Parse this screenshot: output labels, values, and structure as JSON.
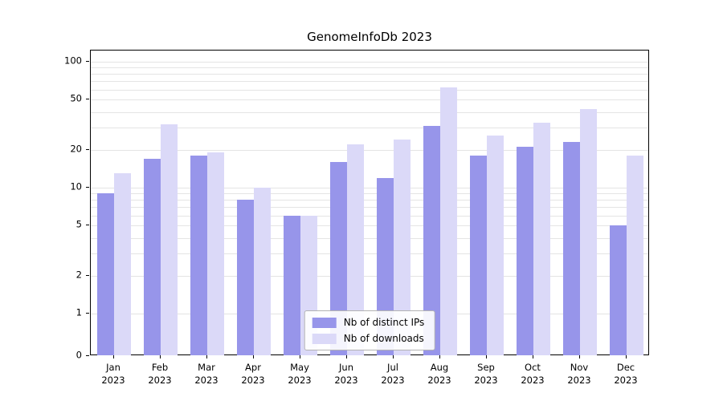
{
  "title": "GenomeInfoDb 2023",
  "chart_data": {
    "type": "bar",
    "yscale": "log",
    "title": "GenomeInfoDb 2023",
    "xlabel": "",
    "ylabel": "",
    "categories": [
      "Jan 2023",
      "Feb 2023",
      "Mar 2023",
      "Apr 2023",
      "May 2023",
      "Jun 2023",
      "Jul 2023",
      "Aug 2023",
      "Sep 2023",
      "Oct 2023",
      "Nov 2023",
      "Dec 2023"
    ],
    "series": [
      {
        "name": "Nb of distinct IPs",
        "color": "#9795ea",
        "values": [
          9,
          17,
          18,
          8,
          6,
          16,
          12,
          31,
          18,
          21,
          23,
          5
        ]
      },
      {
        "name": "Nb of downloads",
        "color": "#dbd9f8",
        "values": [
          13,
          32,
          19,
          10,
          6,
          22,
          24,
          63,
          26,
          33,
          42,
          18
        ]
      }
    ],
    "yticks": [
      0,
      1,
      2,
      5,
      10,
      20,
      50,
      100
    ],
    "gridlines": [
      1,
      2,
      3,
      4,
      5,
      6,
      7,
      8,
      9,
      10,
      20,
      30,
      40,
      50,
      60,
      70,
      80,
      90,
      100
    ],
    "grid_color": "#e4e4e4",
    "ymax_decades": 2,
    "legend_position": "bottom-center",
    "grid": "on"
  }
}
